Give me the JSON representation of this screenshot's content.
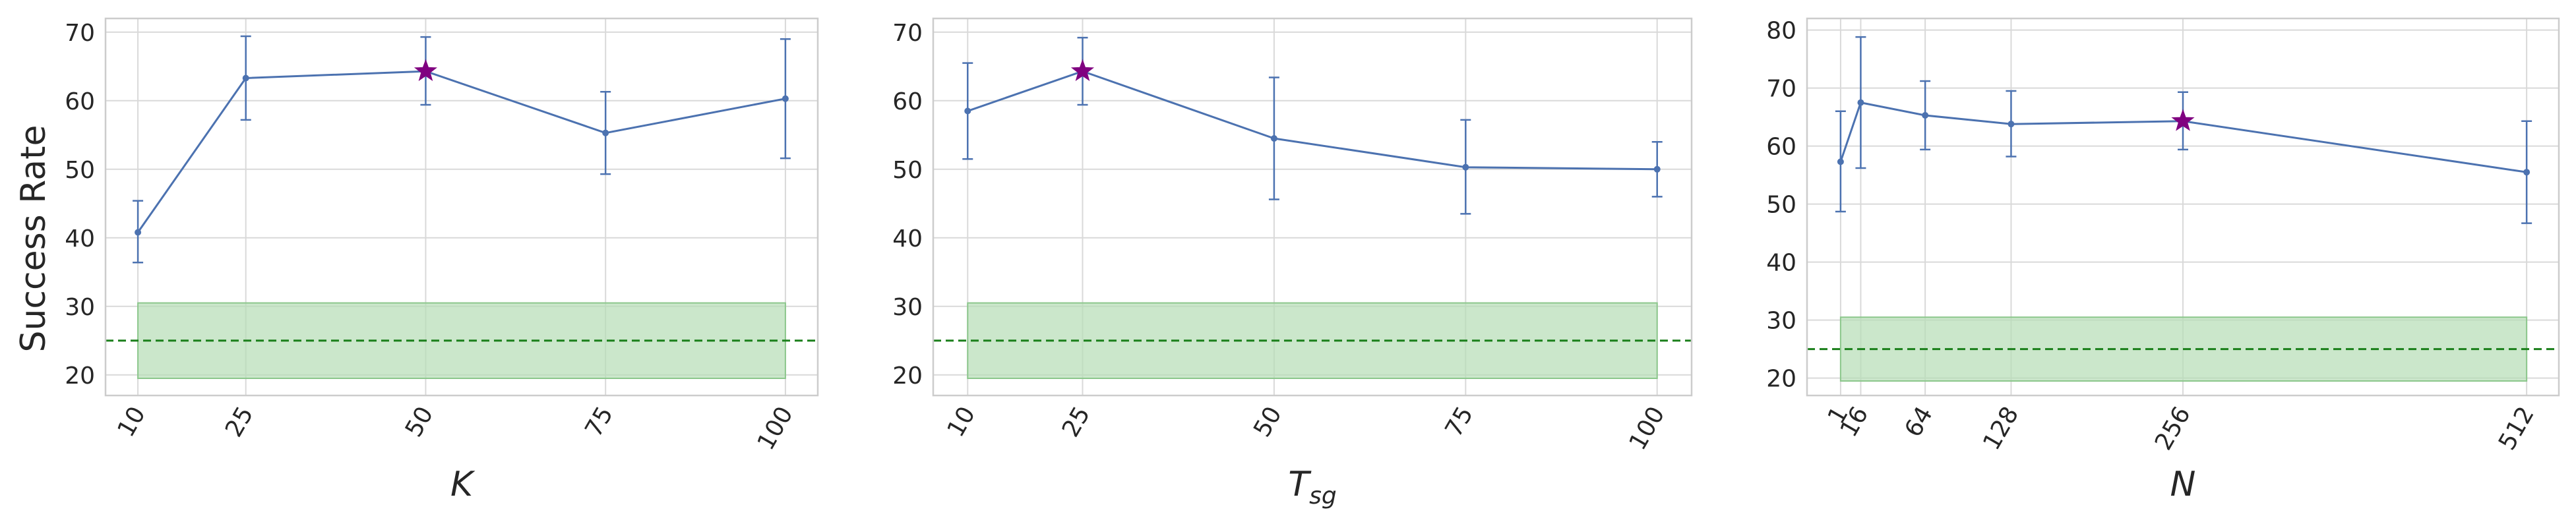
{
  "ylabel": "Success Rate",
  "colors": {
    "line": "#4c72b0",
    "star": "#800080",
    "baseline": "#1a7f1a",
    "band": "#b5ddb5",
    "band_edge": "#8cc78c"
  },
  "chart_data": [
    {
      "type": "line",
      "xlabel": "K",
      "x": [
        10,
        25,
        50,
        75,
        100
      ],
      "x_ticks": [
        "10",
        "25",
        "50",
        "75",
        "100"
      ],
      "xlim": [
        5.5,
        104.5
      ],
      "x_scale": "linear",
      "values": [
        40.8,
        63.3,
        64.3,
        55.3,
        60.3
      ],
      "err_low": [
        36.4,
        57.2,
        59.4,
        49.3,
        51.6
      ],
      "err_high": [
        45.4,
        69.4,
        69.3,
        61.3,
        69.0
      ],
      "star_index": 2,
      "baseline": 25,
      "band": [
        19.5,
        30.5
      ],
      "band_x": [
        10,
        100
      ],
      "ylim": [
        17,
        72
      ],
      "y_ticks": [
        20,
        30,
        40,
        50,
        60,
        70
      ],
      "grid": true
    },
    {
      "type": "line",
      "xlabel": "T",
      "xlabel_sub": "sg",
      "x": [
        10,
        25,
        50,
        75,
        100
      ],
      "x_ticks": [
        "10",
        "25",
        "50",
        "75",
        "100"
      ],
      "xlim": [
        5.5,
        104.5
      ],
      "x_scale": "linear",
      "values": [
        58.5,
        64.3,
        54.5,
        50.3,
        50.0
      ],
      "err_low": [
        51.5,
        59.4,
        45.6,
        43.5,
        46.0
      ],
      "err_high": [
        65.5,
        69.2,
        63.4,
        57.2,
        54.0
      ],
      "star_index": 1,
      "baseline": 25,
      "band": [
        19.5,
        30.5
      ],
      "band_x": [
        10,
        100
      ],
      "ylim": [
        17,
        72
      ],
      "y_ticks": [
        20,
        30,
        40,
        50,
        60,
        70
      ],
      "grid": true
    },
    {
      "type": "line",
      "xlabel": "N",
      "x": [
        1,
        16,
        64,
        128,
        256,
        512
      ],
      "x_ticks": [
        "1",
        "16",
        "64",
        "128",
        "256",
        "512"
      ],
      "xlim": [
        -24,
        536
      ],
      "x_scale": "linear",
      "values": [
        57.3,
        67.5,
        65.3,
        63.8,
        64.3,
        55.5
      ],
      "err_low": [
        48.7,
        56.2,
        59.4,
        58.2,
        59.4,
        46.7
      ],
      "err_high": [
        66.0,
        78.8,
        71.2,
        69.5,
        69.3,
        64.3
      ],
      "star_index": 4,
      "baseline": 25,
      "band": [
        19.5,
        30.5
      ],
      "band_x": [
        1,
        512
      ],
      "ylim": [
        17,
        82
      ],
      "y_ticks": [
        20,
        30,
        40,
        50,
        60,
        70,
        80
      ],
      "grid": true
    }
  ]
}
